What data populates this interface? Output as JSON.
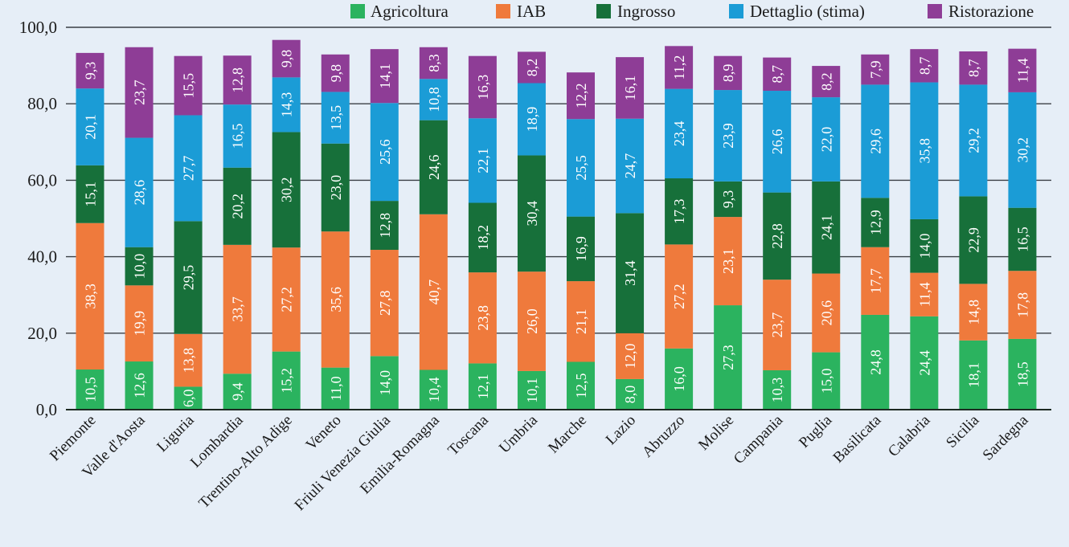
{
  "chart_data": {
    "type": "bar",
    "stacked": true,
    "title": "",
    "xlabel": "",
    "ylabel": "",
    "ylim": [
      0,
      100
    ],
    "yticks": [
      "0,0",
      "20,0",
      "40,0",
      "60,0",
      "80,0",
      "100,0"
    ],
    "ytick_values": [
      0,
      20,
      40,
      60,
      80,
      100
    ],
    "grid": true,
    "legend_position": "top-right",
    "categories": [
      "Piemonte",
      "Valle d'Aosta",
      "Liguria",
      "Lombardia",
      "Trentino-Alto Adige",
      "Veneto",
      "Friuli Venezia Giulia",
      "Emilia-Romagna",
      "Toscana",
      "Umbria",
      "Marche",
      "Lazio",
      "Abruzzo",
      "Molise",
      "Campania",
      "Puglia",
      "Basilicata",
      "Calabria",
      "Sicilia",
      "Sardegna"
    ],
    "series": [
      {
        "name": "Agricoltura",
        "color": "#2bb35f",
        "values": [
          10.5,
          12.6,
          6.0,
          9.4,
          15.2,
          11.0,
          14.0,
          10.4,
          12.1,
          10.1,
          12.5,
          8.0,
          16.0,
          27.3,
          10.3,
          15.0,
          24.8,
          24.4,
          18.1,
          18.5
        ]
      },
      {
        "name": "IAB",
        "color": "#ef7a3c",
        "values": [
          38.3,
          19.9,
          13.8,
          33.7,
          27.2,
          35.6,
          27.8,
          40.7,
          23.8,
          26.0,
          21.1,
          12.0,
          27.2,
          23.1,
          23.7,
          20.6,
          17.7,
          11.4,
          14.8,
          17.8
        ]
      },
      {
        "name": "Ingrosso",
        "color": "#17703a",
        "values": [
          15.1,
          10.0,
          29.5,
          20.2,
          30.2,
          23.0,
          12.8,
          24.6,
          18.2,
          30.4,
          16.9,
          31.4,
          17.3,
          9.3,
          22.8,
          24.1,
          12.9,
          14.0,
          22.9,
          16.5
        ]
      },
      {
        "name": "Dettaglio (stima)",
        "color": "#1b9cd6",
        "values": [
          20.1,
          28.6,
          27.7,
          16.5,
          14.3,
          13.5,
          25.6,
          10.8,
          22.1,
          18.9,
          25.5,
          24.7,
          23.4,
          23.9,
          26.6,
          22.0,
          29.6,
          35.8,
          29.2,
          30.2
        ]
      },
      {
        "name": "Ristorazione",
        "color": "#8e3d96",
        "values": [
          9.3,
          23.7,
          15.5,
          12.8,
          9.8,
          9.8,
          14.1,
          8.3,
          16.3,
          8.2,
          12.2,
          16.1,
          11.2,
          8.9,
          8.7,
          8.2,
          7.9,
          8.7,
          8.7,
          11.4
        ]
      }
    ]
  },
  "legend": {
    "items": [
      "Agricoltura",
      "IAB",
      "Ingrosso",
      "Dettaglio (stima)",
      "Ristorazione"
    ]
  }
}
